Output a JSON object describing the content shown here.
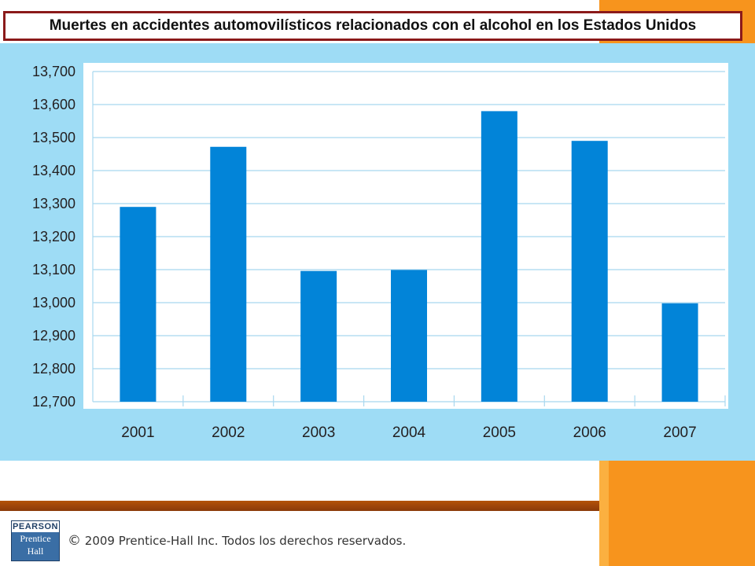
{
  "title": "Muertes en accidentes automovilísticos relacionados con el alcohol en los Estados Unidos",
  "chart_data": {
    "type": "bar",
    "categories": [
      "2001",
      "2002",
      "2003",
      "2004",
      "2005",
      "2006",
      "2007"
    ],
    "values": [
      13290,
      13472,
      13096,
      13099,
      13580,
      13490,
      12998
    ],
    "ylim": [
      12700,
      13700
    ],
    "yticks": [
      12700,
      12800,
      12900,
      13000,
      13100,
      13200,
      13300,
      13400,
      13500,
      13600,
      13700
    ],
    "ytick_labels": [
      "12,700",
      "12,800",
      "12,900",
      "13,000",
      "13,100",
      "13,200",
      "13,300",
      "13,400",
      "13,500",
      "13,600",
      "13,700"
    ],
    "grid": true,
    "bar_color": "#0284d8",
    "grid_color": "#a8d8ef"
  },
  "footer": {
    "copyright_symbol": "©",
    "copyright_text": "2009 Prentice-Hall Inc. Todos los derechos reservados.",
    "logo_top": "PEARSON",
    "logo_mid": "Prentice",
    "logo_bot": "Hall"
  },
  "colors": {
    "accent_orange": "#f7941d",
    "panel_blue": "#9edcf5",
    "title_border": "#8b1a1a"
  }
}
